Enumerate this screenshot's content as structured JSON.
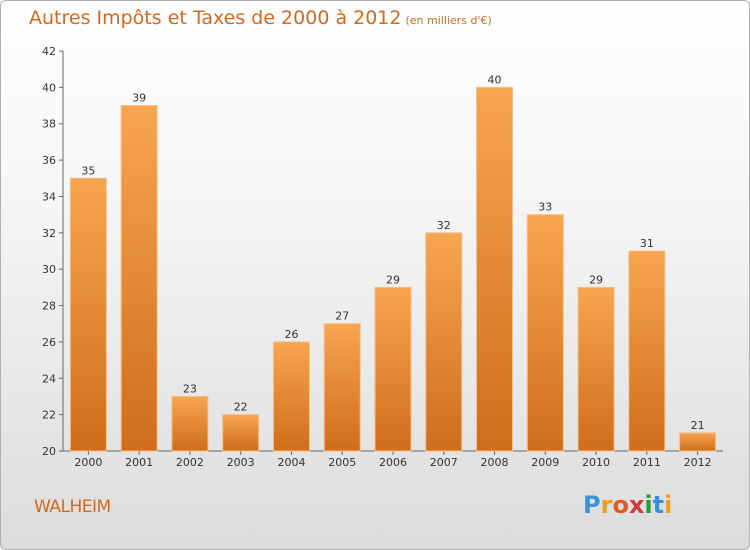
{
  "header": {
    "title": "Autres Impôts et Taxes de 2000 à 2012",
    "unit": "(en milliers d'€)"
  },
  "footer": {
    "city": "WALHEIM",
    "logo_letters": [
      "P",
      "r",
      "o",
      "x",
      "i",
      "t",
      "i"
    ],
    "logo_colors": [
      "#3a8fd6",
      "#e8a020",
      "#e05a2a",
      "#d23a3a",
      "#2a9a3a",
      "#3a8fd6",
      "#e8a020"
    ]
  },
  "colors": {
    "accent": "#d2691e",
    "bar_light": "#f8a550",
    "bar_dark": "#cf6d1a"
  },
  "chart_data": {
    "type": "bar",
    "title": "Autres Impôts et Taxes de 2000 à 2012",
    "subtitle": "(en milliers d'€)",
    "categories": [
      "2000",
      "2001",
      "2002",
      "2003",
      "2004",
      "2005",
      "2006",
      "2007",
      "2008",
      "2009",
      "2010",
      "2011",
      "2012"
    ],
    "values": [
      35,
      39,
      23,
      22,
      26,
      27,
      29,
      32,
      40,
      33,
      29,
      31,
      21
    ],
    "ylim": [
      20,
      42
    ],
    "yticks": [
      20,
      22,
      24,
      26,
      28,
      30,
      32,
      34,
      36,
      38,
      40,
      42
    ],
    "grid": false,
    "xlabel": "",
    "ylabel": ""
  }
}
